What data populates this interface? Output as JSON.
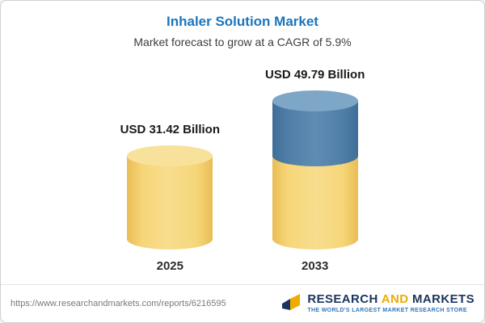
{
  "header": {
    "title": "Inhaler Solution Market",
    "subtitle": "Market forecast to grow at a CAGR of 5.9%"
  },
  "chart_data": {
    "type": "bar",
    "title": "Inhaler Solution Market",
    "subtitle": "Market forecast to grow at a CAGR of 5.9%",
    "categories": [
      "2025",
      "2033"
    ],
    "values": [
      31.42,
      49.79
    ],
    "value_labels": [
      "USD 31.42 Billion",
      "USD 49.79 Billion"
    ],
    "unit": "USD Billion",
    "cagr": "5.9%",
    "legend_position": "none",
    "grid": false,
    "colors": {
      "bar_yellow": "#F6D678",
      "bar_yellow_top": "#F8E19B",
      "bar_blue": "#517FA8",
      "bar_blue_top": "#7EA6C7",
      "title_blue": "#1B75BC"
    }
  },
  "footer": {
    "url": "https://www.researchandmarkets.com/reports/6216595",
    "logo": {
      "research": "RESEARCH",
      "and": "AND",
      "markets": "MARKETS",
      "tagline": "THE WORLD'S LARGEST MARKET RESEARCH STORE"
    }
  }
}
